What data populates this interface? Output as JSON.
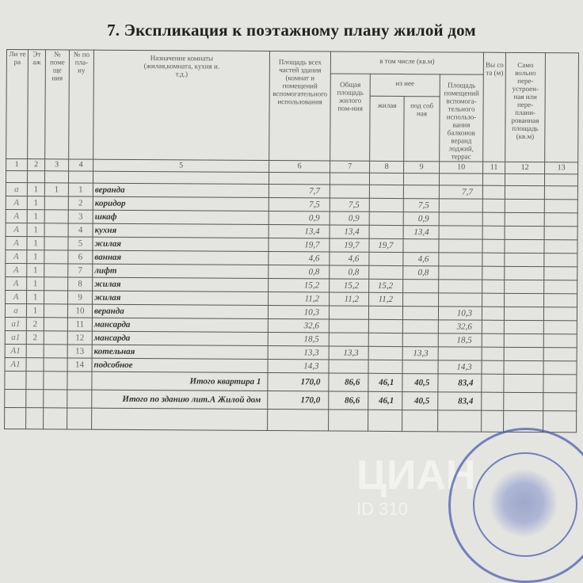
{
  "title": "7. Экспликация к поэтажному плану жилой дом",
  "headers": {
    "litera": "Ли те ра",
    "etazh": "Эт аж",
    "pom": "№ поме ще ния",
    "plan": "№ по пла- ну",
    "purpose": "Назначение комнаты (жилая,комната, кухня и. т.д.)",
    "total_area": "Площадь всех частей здания (комнат и помещений вспомогательного использования",
    "incl": "в том числе (кв.м)",
    "common": "Общая площадь жилого пом-ния",
    "of_it": "из нее",
    "living": "жилая",
    "aux": "под соб ная",
    "balcony": "Площадь помещений вспомога-тельного использо-вания балконов веранд лоджий, террас",
    "height": "Вы со та (м)",
    "unauth": "Само вольно пере-устроен-ная или пере-плани-рованная площадь (кв.м)",
    "numbers": [
      "1",
      "2",
      "3",
      "4",
      "5",
      "6",
      "7",
      "8",
      "9",
      "10",
      "11",
      "12",
      "13"
    ]
  },
  "rows": [
    {
      "lit": "а",
      "fl": "1",
      "pom": "1",
      "no": "1",
      "name": "веранда",
      "total": "7,7",
      "common": "",
      "living": "",
      "aux": "",
      "balc": "7,7"
    },
    {
      "lit": "А",
      "fl": "1",
      "pom": "",
      "no": "2",
      "name": "коридор",
      "total": "7,5",
      "common": "7,5",
      "living": "",
      "aux": "7,5",
      "balc": ""
    },
    {
      "lit": "А",
      "fl": "1",
      "pom": "",
      "no": "3",
      "name": "шкаф",
      "total": "0,9",
      "common": "0,9",
      "living": "",
      "aux": "0,9",
      "balc": ""
    },
    {
      "lit": "А",
      "fl": "1",
      "pom": "",
      "no": "4",
      "name": "кухня",
      "total": "13,4",
      "common": "13,4",
      "living": "",
      "aux": "13,4",
      "balc": ""
    },
    {
      "lit": "А",
      "fl": "1",
      "pom": "",
      "no": "5",
      "name": "жилая",
      "total": "19,7",
      "common": "19,7",
      "living": "19,7",
      "aux": "",
      "balc": ""
    },
    {
      "lit": "А",
      "fl": "1",
      "pom": "",
      "no": "6",
      "name": "ванная",
      "total": "4,6",
      "common": "4,6",
      "living": "",
      "aux": "4,6",
      "balc": ""
    },
    {
      "lit": "А",
      "fl": "1",
      "pom": "",
      "no": "7",
      "name": "лифт",
      "total": "0,8",
      "common": "0,8",
      "living": "",
      "aux": "0,8",
      "balc": ""
    },
    {
      "lit": "А",
      "fl": "1",
      "pom": "",
      "no": "8",
      "name": "жилая",
      "total": "15,2",
      "common": "15,2",
      "living": "15,2",
      "aux": "",
      "balc": ""
    },
    {
      "lit": "А",
      "fl": "1",
      "pom": "",
      "no": "9",
      "name": "жилая",
      "total": "11,2",
      "common": "11,2",
      "living": "11,2",
      "aux": "",
      "balc": ""
    },
    {
      "lit": "а",
      "fl": "1",
      "pom": "",
      "no": "10",
      "name": "веранда",
      "total": "10,3",
      "common": "",
      "living": "",
      "aux": "",
      "balc": "10,3"
    },
    {
      "lit": "а1",
      "fl": "2",
      "pom": "",
      "no": "11",
      "name": "мансарда",
      "total": "32,6",
      "common": "",
      "living": "",
      "aux": "",
      "balc": "32,6"
    },
    {
      "lit": "а1",
      "fl": "2",
      "pom": "",
      "no": "12",
      "name": "мансарда",
      "total": "18,5",
      "common": "",
      "living": "",
      "aux": "",
      "balc": "18,5"
    },
    {
      "lit": "А1",
      "fl": "",
      "pom": "",
      "no": "13",
      "name": "котельная",
      "total": "13,3",
      "common": "13,3",
      "living": "",
      "aux": "13,3",
      "balc": ""
    },
    {
      "lit": "А1",
      "fl": "",
      "pom": "",
      "no": "14",
      "name": "подсобное",
      "total": "14,3",
      "common": "",
      "living": "",
      "aux": "",
      "balc": "14,3"
    }
  ],
  "totals": [
    {
      "label": "Итого квартира 1",
      "total": "170,0",
      "common": "86,6",
      "living": "46,1",
      "aux": "40,5",
      "balc": "83,4"
    },
    {
      "label": "Итого по зданию лит.А Жилой дом",
      "total": "170,0",
      "common": "86,6",
      "living": "46,1",
      "aux": "40,5",
      "balc": "83,4"
    }
  ],
  "stamp": {
    "text": "МОСКОВСКАЯ ОБЛАСТЬ ПРАВИТЕЛЬСТВО БЮРО ТЕХНИЧЕСКОЙ ИНВЕНТАРИЗАЦИИ",
    "color": "#4a5fb0"
  },
  "watermark": {
    "brand": "ЦИАН",
    "id": "ID 310"
  }
}
